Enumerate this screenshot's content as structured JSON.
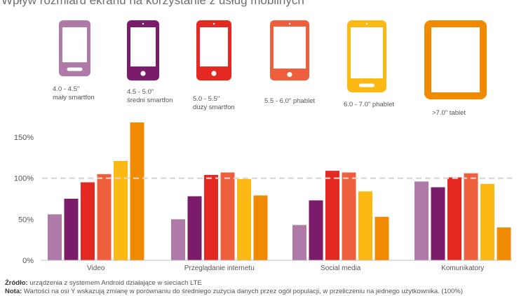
{
  "title": "Wpływ rozmiaru ekranu na korzystanie z usług mobilnych",
  "devices": [
    {
      "size": "4.0 - 4.5\"",
      "name": "mały smartfon",
      "color": "#b07aa8",
      "icon": "smartphone-icon"
    },
    {
      "size": "4.5 - 5.0\"",
      "name": "średni smartfon",
      "color": "#7a1c6a",
      "icon": "smartphone-icon"
    },
    {
      "size": "5.0 - 5.5\"",
      "name": "duży smartfon",
      "color": "#e42822",
      "icon": "smartphone-icon"
    },
    {
      "size": "5.5 - 6.0\"",
      "name": "phablet",
      "color": "#ee5f3e",
      "icon": "phablet-icon"
    },
    {
      "size": "6.0 - 7.0\"",
      "name": "phablet",
      "color": "#fdb913",
      "icon": "phablet-icon"
    },
    {
      "size": ">7.0\"",
      "name": "tablet",
      "color": "#f08a00",
      "icon": "tablet-icon"
    }
  ],
  "chart_data": {
    "type": "bar",
    "categories": [
      "Video",
      "Przeglądanie internetu",
      "Social media",
      "Komunikatory"
    ],
    "series": [
      {
        "name": "4.0 - 4.5\" mały smartfon",
        "color": "#b07aa8",
        "values": [
          56,
          50,
          43,
          96
        ]
      },
      {
        "name": "4.5 - 5.0\" średni smartfon",
        "color": "#7a1c6a",
        "values": [
          75,
          78,
          73,
          89
        ]
      },
      {
        "name": "5.0 - 5.5\" duży smartfon",
        "color": "#e42822",
        "values": [
          95,
          104,
          109,
          101
        ]
      },
      {
        "name": "5.5 - 6.0\" phablet",
        "color": "#ee5f3e",
        "values": [
          105,
          107,
          107,
          106
        ]
      },
      {
        "name": "6.0 - 7.0\" phablet",
        "color": "#fdb913",
        "values": [
          121,
          99,
          84,
          93
        ]
      },
      {
        "name": ">7.0\" tablet",
        "color": "#f08a00",
        "values": [
          171,
          79,
          53,
          40
        ]
      }
    ],
    "yticks": [
      0,
      50,
      100,
      150
    ],
    "ytick_labels": [
      "0%",
      "50%",
      "100%",
      "150%"
    ],
    "ylim": [
      0,
      180
    ],
    "reference_line": 100,
    "grid": false
  },
  "footnotes": {
    "source_label": "Źródło:",
    "source_text": "urządzenia z systemem Android działające w sieciach LTE",
    "note_label": "Nota:",
    "note_text": "Wartości na osi Y wskazują zmianę w porównaniu do średniego zużycia danych przez ogół populacji, w przeliczeniu na jednego użytkownika. (100%)"
  }
}
